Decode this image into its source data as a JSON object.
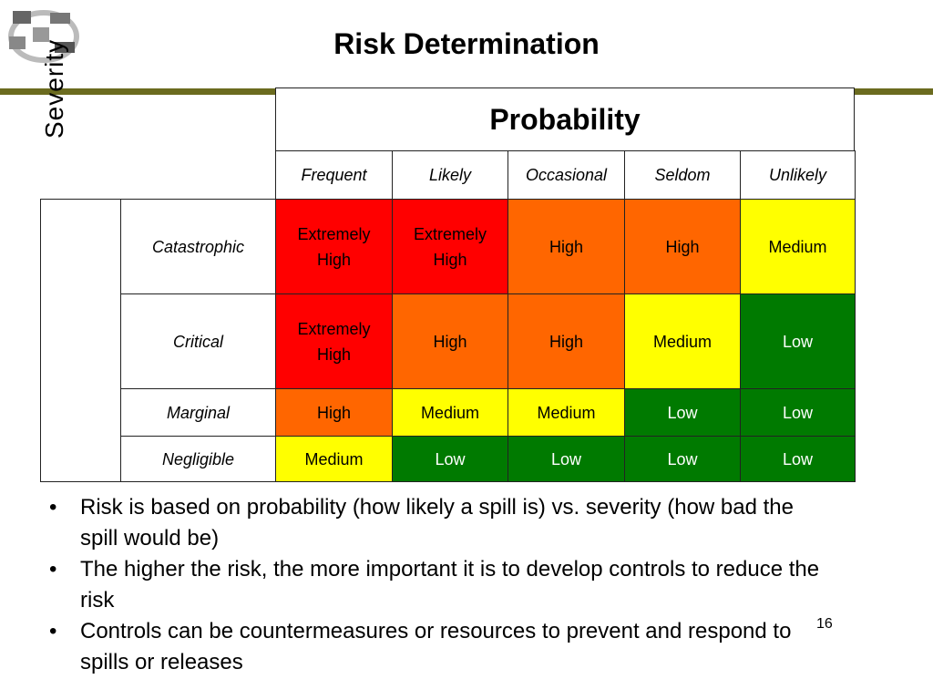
{
  "header": {
    "title": "Risk Determination"
  },
  "table": {
    "probability_label": "Probability",
    "severity_label": "Severity",
    "columns": [
      "Frequent",
      "Likely",
      "Occasional",
      "Seldom",
      "Unlikely"
    ],
    "rows": [
      {
        "label": "Catastrophic",
        "cells": [
          {
            "text": "Extremely High",
            "color": "#ff0000"
          },
          {
            "text": "Extremely High",
            "color": "#ff0000"
          },
          {
            "text": "High",
            "color": "#ff6600"
          },
          {
            "text": "High",
            "color": "#ff6600"
          },
          {
            "text": "Medium",
            "color": "#ffff00"
          }
        ]
      },
      {
        "label": "Critical",
        "cells": [
          {
            "text": "Extremely High",
            "color": "#ff0000"
          },
          {
            "text": "High",
            "color": "#ff6600"
          },
          {
            "text": "High",
            "color": "#ff6600"
          },
          {
            "text": "Medium",
            "color": "#ffff00"
          },
          {
            "text": "Low",
            "color": "#007a00"
          }
        ]
      },
      {
        "label": "Marginal",
        "cells": [
          {
            "text": "High",
            "color": "#ff6600"
          },
          {
            "text": "Medium",
            "color": "#ffff00"
          },
          {
            "text": "Medium",
            "color": "#ffff00"
          },
          {
            "text": "Low",
            "color": "#007a00"
          },
          {
            "text": "Low",
            "color": "#007a00"
          }
        ]
      },
      {
        "label": "Negligible",
        "cells": [
          {
            "text": "Medium",
            "color": "#ffff00"
          },
          {
            "text": "Low",
            "color": "#007a00"
          },
          {
            "text": "Low",
            "color": "#007a00"
          },
          {
            "text": "Low",
            "color": "#007a00"
          },
          {
            "text": "Low",
            "color": "#007a00"
          }
        ]
      }
    ]
  },
  "bullets": [
    "Risk is based on probability (how likely a spill is) vs. severity (how bad the spill would be)",
    "The higher the risk, the more important it is to develop controls to reduce the risk",
    "Controls can be countermeasures or resources to prevent and respond to spills or releases"
  ],
  "page_number": "16"
}
